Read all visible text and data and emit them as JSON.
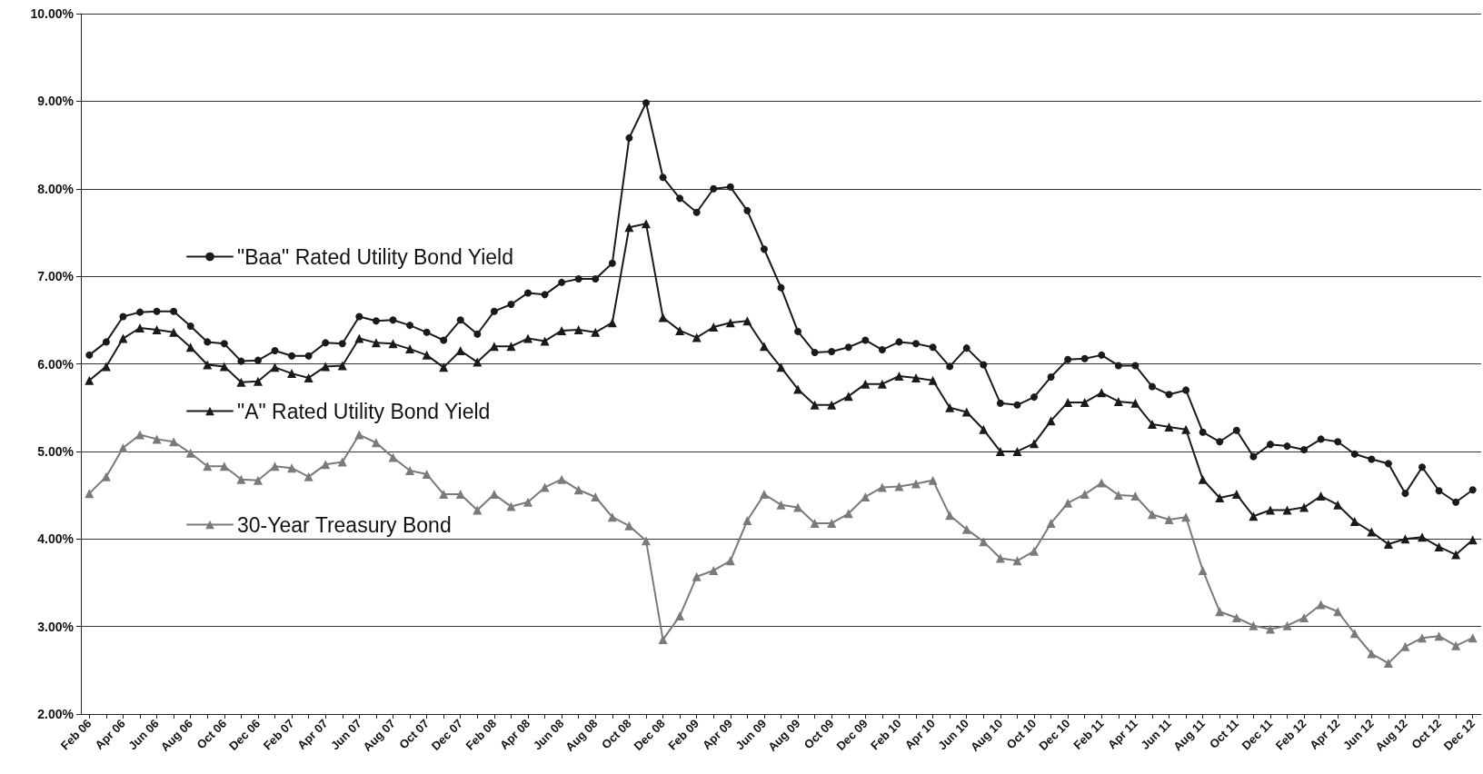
{
  "chart_data": {
    "type": "line",
    "categories": [
      "Feb 06",
      null,
      "Apr 06",
      null,
      "Jun 06",
      null,
      "Aug 06",
      null,
      "Oct 06",
      null,
      "Dec 06",
      null,
      "Feb 07",
      null,
      "Apr 07",
      null,
      "Jun 07",
      null,
      "Aug 07",
      null,
      "Oct 07",
      null,
      "Dec 07",
      null,
      "Feb 08",
      null,
      "Apr 08",
      null,
      "Jun 08",
      null,
      "Aug 08",
      null,
      "Oct 08",
      null,
      "Dec 08",
      null,
      "Feb 09",
      null,
      "Apr 09",
      null,
      "Jun 09",
      null,
      "Aug 09",
      null,
      "Oct 09",
      null,
      "Dec 09",
      null,
      "Feb 10",
      null,
      "Apr 10",
      null,
      "Jun 10",
      null,
      "Aug 10",
      null,
      "Oct 10",
      null,
      "Dec 10",
      null,
      "Feb 11",
      null,
      "Apr 11",
      null,
      "Jun 11",
      null,
      "Aug 11",
      null,
      "Oct 11",
      null,
      "Dec 11",
      null,
      "Feb 12",
      null,
      "Apr 12",
      null,
      "Jun 12",
      null,
      "Aug 12",
      null,
      "Oct 12",
      null,
      "Dec 12"
    ],
    "series": [
      {
        "name": "\"Baa\" Rated Utility Bond Yield",
        "color": "#1a1a1a",
        "marker": "circle",
        "values": [
          6.1,
          6.25,
          6.54,
          6.59,
          6.6,
          6.6,
          6.43,
          6.25,
          6.23,
          6.03,
          6.04,
          6.15,
          6.09,
          6.09,
          6.24,
          6.23,
          6.54,
          6.49,
          6.5,
          6.44,
          6.36,
          6.27,
          6.5,
          6.34,
          6.6,
          6.68,
          6.81,
          6.79,
          6.93,
          6.97,
          6.97,
          7.15,
          8.58,
          8.98,
          8.13,
          7.89,
          7.73,
          8.0,
          8.02,
          7.75,
          7.31,
          6.87,
          6.37,
          6.13,
          6.14,
          6.19,
          6.27,
          6.16,
          6.25,
          6.23,
          6.19,
          5.97,
          6.18,
          5.99,
          5.55,
          5.53,
          5.62,
          5.85,
          6.05,
          6.06,
          6.1,
          5.98,
          5.98,
          5.74,
          5.65,
          5.7,
          5.22,
          5.11,
          5.24,
          4.94,
          5.08,
          5.06,
          5.02,
          5.14,
          5.11,
          4.97,
          4.91,
          4.86,
          4.52,
          4.82,
          4.55,
          4.42,
          4.56
        ]
      },
      {
        "name": "\"A\" Rated Utility Bond Yield",
        "color": "#1a1a1a",
        "marker": "triangle",
        "values": [
          5.81,
          5.97,
          6.29,
          6.41,
          6.39,
          6.36,
          6.19,
          5.99,
          5.97,
          5.79,
          5.8,
          5.96,
          5.89,
          5.84,
          5.97,
          5.98,
          6.29,
          6.24,
          6.23,
          6.17,
          6.1,
          5.96,
          6.15,
          6.02,
          6.2,
          6.2,
          6.29,
          6.26,
          6.38,
          6.39,
          6.36,
          6.47,
          7.56,
          7.6,
          6.53,
          6.38,
          6.3,
          6.42,
          6.47,
          6.49,
          6.2,
          5.96,
          5.71,
          5.53,
          5.53,
          5.63,
          5.77,
          5.77,
          5.86,
          5.84,
          5.81,
          5.5,
          5.45,
          5.25,
          5.0,
          5.0,
          5.09,
          5.35,
          5.56,
          5.56,
          5.67,
          5.57,
          5.55,
          5.31,
          5.28,
          5.25,
          4.68,
          4.47,
          4.51,
          4.26,
          4.33,
          4.33,
          4.36,
          4.49,
          4.39,
          4.2,
          4.08,
          3.94,
          4.0,
          4.02,
          3.91,
          3.82,
          3.99
        ]
      },
      {
        "name": "30-Year Treasury Bond",
        "color": "#7a7a7a",
        "marker": "triangle",
        "values": [
          4.52,
          4.71,
          5.04,
          5.19,
          5.14,
          5.11,
          4.98,
          4.83,
          4.83,
          4.68,
          4.67,
          4.83,
          4.81,
          4.71,
          4.85,
          4.88,
          5.19,
          5.1,
          4.93,
          4.78,
          4.74,
          4.51,
          4.51,
          4.33,
          4.51,
          4.37,
          4.42,
          4.59,
          4.68,
          4.56,
          4.48,
          4.25,
          4.15,
          3.98,
          2.85,
          3.12,
          3.57,
          3.64,
          3.75,
          4.21,
          4.51,
          4.39,
          4.36,
          4.18,
          4.18,
          4.29,
          4.48,
          4.59,
          4.6,
          4.63,
          4.67,
          4.27,
          4.11,
          3.97,
          3.78,
          3.75,
          3.86,
          4.18,
          4.41,
          4.51,
          4.64,
          4.5,
          4.49,
          4.28,
          4.22,
          4.25,
          3.64,
          3.17,
          3.1,
          3.01,
          2.97,
          3.01,
          3.1,
          3.25,
          3.17,
          2.92,
          2.69,
          2.58,
          2.77,
          2.87,
          2.89,
          2.78,
          2.87
        ]
      }
    ],
    "ylim": [
      2,
      10
    ],
    "yticks": [
      {
        "value": 2,
        "label": "2.00%"
      },
      {
        "value": 3,
        "label": "3.00%"
      },
      {
        "value": 4,
        "label": "4.00%"
      },
      {
        "value": 5,
        "label": "5.00%"
      },
      {
        "value": 6,
        "label": "6.00%"
      },
      {
        "value": 7,
        "label": "7.00%"
      },
      {
        "value": 8,
        "label": "8.00%"
      },
      {
        "value": 9,
        "label": "9.00%"
      },
      {
        "value": 10,
        "label": "10.00%"
      }
    ],
    "grid": "y",
    "legend": "left",
    "line_style": "solid"
  }
}
